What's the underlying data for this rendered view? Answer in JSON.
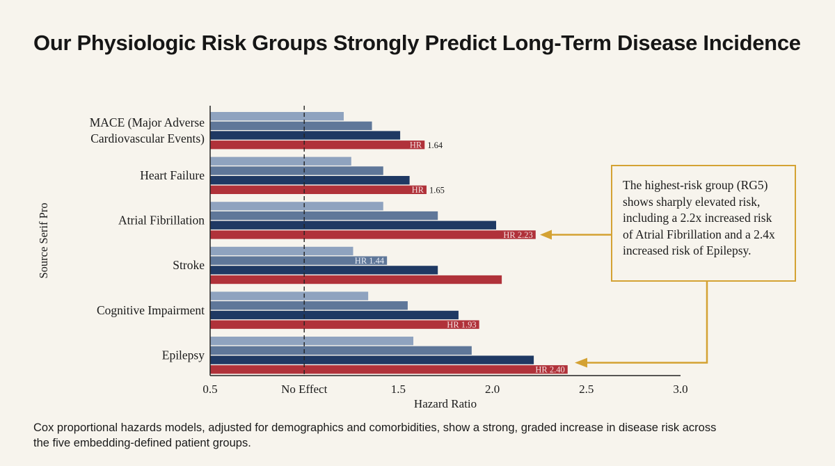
{
  "title": "Our Physiologic Risk Groups Strongly Predict Long-Term Disease Incidence",
  "caption": "Cox proportional hazards models, adjusted for demographics and comorbidities, show a strong, graded increase in disease risk across the five embedding-defined patient groups.",
  "callout": "The highest-risk group (RG5) shows sharply elevated risk, including a 2.2x increased risk of Atrial Fibrillation and a 2.4x increased risk of Epilepsy.",
  "colors": {
    "series": [
      "#8fa3bf",
      "#5f7799",
      "#1f3963",
      "#b0323a"
    ],
    "accent": "#d4a233",
    "reference_line": "#222222"
  },
  "chart_data": {
    "type": "bar",
    "orientation": "horizontal",
    "xlabel": "Hazard Ratio",
    "ylabel": "Source Serif Pro",
    "xlim": [
      0.5,
      3.0
    ],
    "xticks": [
      {
        "value": 0.5,
        "label": "0.5"
      },
      {
        "value": 1.0,
        "label": "No Effect"
      },
      {
        "value": 1.5,
        "label": "1.5"
      },
      {
        "value": 2.0,
        "label": "2.0"
      },
      {
        "value": 2.5,
        "label": "2.5"
      },
      {
        "value": 3.0,
        "label": "3.0"
      }
    ],
    "reference_line": 1.0,
    "grid": false,
    "categories": [
      "MACE (Major Adverse|Cardiovascular Events)",
      "Heart Failure",
      "Atrial Fibrillation",
      "Stroke",
      "Cognitive Impairment",
      "Epilepsy"
    ],
    "series": [
      {
        "values": [
          1.21,
          1.25,
          1.42,
          1.26,
          1.34,
          1.58
        ]
      },
      {
        "values": [
          1.36,
          1.42,
          1.71,
          1.44,
          1.55,
          1.89
        ]
      },
      {
        "values": [
          1.51,
          1.56,
          2.02,
          1.71,
          1.82,
          2.22
        ]
      },
      {
        "values": [
          1.64,
          1.65,
          2.23,
          2.05,
          1.93,
          2.4
        ]
      }
    ],
    "data_labels": [
      {
        "category": 0,
        "series": 3,
        "inside": "HR",
        "outside": "1.64"
      },
      {
        "category": 1,
        "series": 3,
        "inside": "HR",
        "outside": "1.65"
      },
      {
        "category": 2,
        "series": 3,
        "inside": "HR 2.23",
        "outside": ""
      },
      {
        "category": 3,
        "series": 1,
        "inside": "HR 1.44",
        "outside": ""
      },
      {
        "category": 4,
        "series": 3,
        "inside": "HR 1.93",
        "outside": ""
      },
      {
        "category": 5,
        "series": 3,
        "inside": "HR 2.40",
        "outside": ""
      }
    ],
    "annotations": [
      {
        "text": "The highest-risk group (RG5) shows sharply elevated risk, including a 2.2x increased risk of Atrial Fibrillation and a 2.4x increased risk of Epilepsy.",
        "points_to": [
          "Atrial Fibrillation",
          "Epilepsy"
        ]
      }
    ]
  }
}
